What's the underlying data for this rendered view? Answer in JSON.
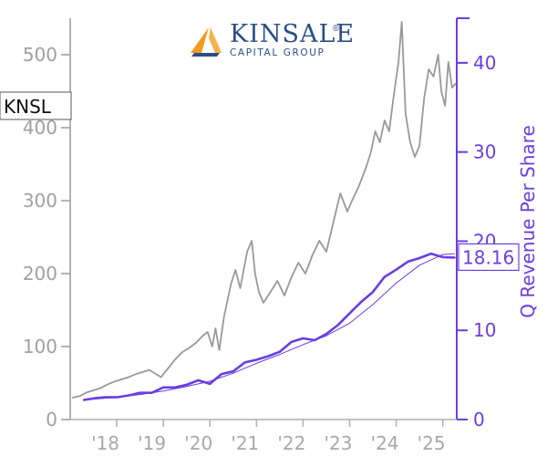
{
  "chart_data": {
    "type": "line",
    "ticker": "KNSL",
    "company": {
      "name": "KINSALE",
      "tagline": "CAPITAL GROUP",
      "registered_mark": "®"
    },
    "x_ticks": [
      "'18",
      "'19",
      "'20",
      "'21",
      "'22",
      "'23",
      "'24",
      "'25"
    ],
    "left_axis": {
      "ticks": [
        0,
        100,
        200,
        300,
        400,
        500
      ],
      "ylim": [
        0,
        550
      ]
    },
    "right_axis": {
      "label": "Q Revenue Per Share",
      "ticks": [
        0,
        10,
        20,
        30,
        40
      ],
      "ylim": [
        0,
        45
      ]
    },
    "xlim": [
      2017.0,
      2025.3
    ],
    "last_value_label": "18.16",
    "colors": {
      "price": "#999999",
      "revenue": "#6a3ee0",
      "logo_orange": "#f39a1e",
      "logo_blue": "#2b4f86"
    },
    "series": [
      {
        "axis": "left",
        "points": [
          [
            2017.05,
            30
          ],
          [
            2017.2,
            32
          ],
          [
            2017.35,
            37
          ],
          [
            2017.5,
            40
          ],
          [
            2017.65,
            43
          ],
          [
            2017.8,
            48
          ],
          [
            2017.95,
            52
          ],
          [
            2018.1,
            55
          ],
          [
            2018.25,
            58
          ],
          [
            2018.4,
            62
          ],
          [
            2018.55,
            65
          ],
          [
            2018.7,
            68
          ],
          [
            2018.85,
            62
          ],
          [
            2018.95,
            58
          ],
          [
            2019.1,
            70
          ],
          [
            2019.25,
            82
          ],
          [
            2019.4,
            92
          ],
          [
            2019.55,
            98
          ],
          [
            2019.7,
            105
          ],
          [
            2019.85,
            115
          ],
          [
            2019.95,
            120
          ],
          [
            2020.05,
            100
          ],
          [
            2020.12,
            125
          ],
          [
            2020.2,
            95
          ],
          [
            2020.3,
            140
          ],
          [
            2020.45,
            185
          ],
          [
            2020.55,
            205
          ],
          [
            2020.65,
            180
          ],
          [
            2020.8,
            230
          ],
          [
            2020.9,
            245
          ],
          [
            2020.97,
            200
          ],
          [
            2021.05,
            175
          ],
          [
            2021.15,
            160
          ],
          [
            2021.3,
            175
          ],
          [
            2021.45,
            190
          ],
          [
            2021.6,
            170
          ],
          [
            2021.75,
            195
          ],
          [
            2021.9,
            215
          ],
          [
            2022.05,
            200
          ],
          [
            2022.2,
            225
          ],
          [
            2022.35,
            245
          ],
          [
            2022.5,
            230
          ],
          [
            2022.65,
            270
          ],
          [
            2022.8,
            310
          ],
          [
            2022.95,
            285
          ],
          [
            2023.05,
            300
          ],
          [
            2023.2,
            320
          ],
          [
            2023.35,
            345
          ],
          [
            2023.45,
            365
          ],
          [
            2023.55,
            395
          ],
          [
            2023.65,
            380
          ],
          [
            2023.75,
            410
          ],
          [
            2023.85,
            395
          ],
          [
            2023.95,
            445
          ],
          [
            2024.05,
            490
          ],
          [
            2024.12,
            545
          ],
          [
            2024.2,
            420
          ],
          [
            2024.3,
            380
          ],
          [
            2024.4,
            360
          ],
          [
            2024.5,
            375
          ],
          [
            2024.6,
            440
          ],
          [
            2024.7,
            480
          ],
          [
            2024.8,
            470
          ],
          [
            2024.9,
            500
          ],
          [
            2024.97,
            450
          ],
          [
            2025.05,
            430
          ],
          [
            2025.12,
            490
          ],
          [
            2025.2,
            455
          ],
          [
            2025.27,
            460
          ]
        ]
      },
      {
        "name": "Q Revenue Per Share",
        "axis": "right",
        "points": [
          [
            2017.3,
            2.2
          ],
          [
            2017.55,
            2.4
          ],
          [
            2017.75,
            2.5
          ],
          [
            2018.0,
            2.5
          ],
          [
            2018.25,
            2.7
          ],
          [
            2018.5,
            3.0
          ],
          [
            2018.75,
            3.0
          ],
          [
            2019.0,
            3.6
          ],
          [
            2019.25,
            3.6
          ],
          [
            2019.5,
            3.9
          ],
          [
            2019.75,
            4.4
          ],
          [
            2020.0,
            4.0
          ],
          [
            2020.25,
            5.1
          ],
          [
            2020.5,
            5.4
          ],
          [
            2020.75,
            6.4
          ],
          [
            2021.0,
            6.7
          ],
          [
            2021.25,
            7.1
          ],
          [
            2021.5,
            7.6
          ],
          [
            2021.75,
            8.7
          ],
          [
            2022.0,
            9.1
          ],
          [
            2022.25,
            8.9
          ],
          [
            2022.5,
            9.6
          ],
          [
            2022.75,
            10.6
          ],
          [
            2023.0,
            11.9
          ],
          [
            2023.25,
            13.2
          ],
          [
            2023.5,
            14.3
          ],
          [
            2023.75,
            16.0
          ],
          [
            2024.0,
            16.8
          ],
          [
            2024.25,
            17.7
          ],
          [
            2024.5,
            18.1
          ],
          [
            2024.75,
            18.6
          ],
          [
            2025.0,
            18.2
          ],
          [
            2025.25,
            18.16
          ]
        ]
      },
      {
        "axis": "right",
        "points": [
          [
            2017.3,
            2.2
          ],
          [
            2018.0,
            2.5
          ],
          [
            2018.5,
            2.8
          ],
          [
            2019.0,
            3.2
          ],
          [
            2019.5,
            3.7
          ],
          [
            2020.0,
            4.3
          ],
          [
            2020.5,
            5.2
          ],
          [
            2021.0,
            6.3
          ],
          [
            2021.5,
            7.3
          ],
          [
            2022.0,
            8.4
          ],
          [
            2022.5,
            9.4
          ],
          [
            2023.0,
            10.8
          ],
          [
            2023.5,
            12.9
          ],
          [
            2024.0,
            15.3
          ],
          [
            2024.5,
            17.3
          ],
          [
            2025.0,
            18.5
          ],
          [
            2025.25,
            18.6
          ]
        ]
      }
    ]
  }
}
